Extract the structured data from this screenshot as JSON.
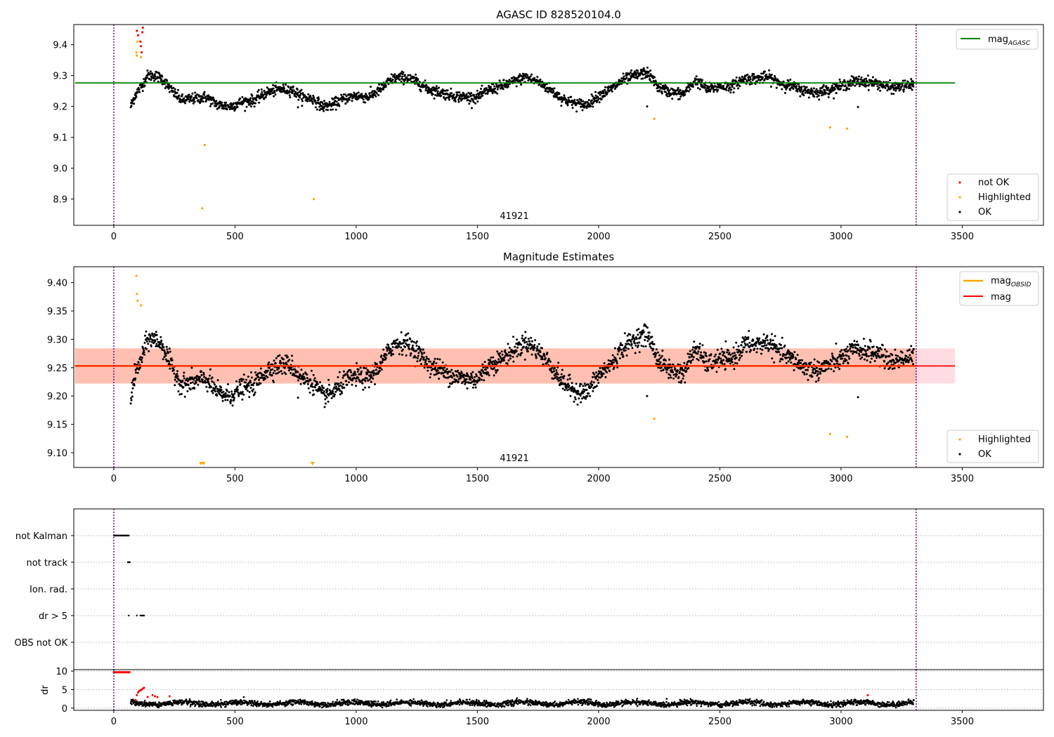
{
  "colors": {
    "ok": "#000000",
    "not_ok": "#ff0000",
    "highlighted": "#ffa500",
    "agasc_line": "#008000",
    "obsid_line": "#ffa500",
    "mag_line": "#ff0000",
    "band_fill": "#ff8c5a",
    "band_outer": "#ffc0cb",
    "vline": "#800080",
    "grid": "#b0b0b0"
  },
  "chart_data": [
    {
      "id": "agasc",
      "type": "scatter",
      "title": "AGASC ID 828520104.0",
      "xlabel": "",
      "ylabel": "",
      "xlim": [
        -165,
        3835
      ],
      "ylim": [
        8.815,
        9.465
      ],
      "xticks": [
        0,
        500,
        1000,
        1500,
        2000,
        2500,
        3000,
        3500
      ],
      "yticks": [
        8.9,
        9.0,
        9.1,
        9.2,
        9.3,
        9.4
      ],
      "ytick_labels": [
        "8.9",
        "9.0",
        "9.1",
        "9.2",
        "9.3",
        "9.4"
      ],
      "obs_bounds": [
        0,
        3310
      ],
      "obsid_label": {
        "text": "41921",
        "x": 1650
      },
      "hline": {
        "name": "mag_AGASC",
        "value": 9.276,
        "xrange": [
          -160,
          3470
        ]
      },
      "legend_lines": [
        {
          "label": "mag",
          "sub": "AGASC",
          "color": "#008000"
        }
      ],
      "legend_points": [
        {
          "label": "not OK",
          "color": "#ff0000"
        },
        {
          "label": "Highlighted",
          "color": "#ffa500"
        },
        {
          "label": "OK",
          "color": "#000000"
        }
      ],
      "series": [
        {
          "name": "not OK",
          "color": "#ff0000",
          "x": [
            95,
            100,
            110,
            112,
            115,
            118,
            120
          ],
          "y": [
            9.445,
            9.43,
            9.41,
            9.395,
            9.375,
            9.44,
            9.455
          ]
        },
        {
          "name": "Highlighted",
          "color": "#ffa500",
          "x": [
            93,
            95,
            98,
            112,
            365,
            375,
            825,
            2230,
            2955,
            3025
          ],
          "y": [
            9.375,
            9.365,
            9.41,
            9.36,
            8.87,
            9.075,
            8.9,
            9.16,
            9.132,
            9.128
          ]
        },
        {
          "name": "OK",
          "color": "#000000",
          "profile_x": [
            70,
            90,
            110,
            140,
            170,
            200,
            240,
            280,
            330,
            380,
            430,
            480,
            530,
            580,
            630,
            680,
            730,
            780,
            820,
            860,
            900,
            950,
            1000,
            1050,
            1100,
            1150,
            1200,
            1250,
            1300,
            1350,
            1400,
            1450,
            1500,
            1550,
            1600,
            1650,
            1700,
            1750,
            1800,
            1850,
            1900,
            1950,
            2000,
            2050,
            2100,
            2150,
            2200,
            2250,
            2300,
            2350,
            2400,
            2450,
            2500,
            2550,
            2600,
            2650,
            2700,
            2750,
            2800,
            2850,
            2900,
            2950,
            3000,
            3050,
            3100,
            3150,
            3200,
            3250,
            3300
          ],
          "profile_y": [
            9.2,
            9.24,
            9.26,
            9.3,
            9.3,
            9.29,
            9.25,
            9.22,
            9.225,
            9.23,
            9.205,
            9.2,
            9.215,
            9.22,
            9.245,
            9.255,
            9.255,
            9.23,
            9.225,
            9.2,
            9.205,
            9.225,
            9.235,
            9.23,
            9.255,
            9.29,
            9.295,
            9.28,
            9.255,
            9.245,
            9.235,
            9.23,
            9.23,
            9.255,
            9.265,
            9.28,
            9.295,
            9.28,
            9.255,
            9.225,
            9.21,
            9.205,
            9.235,
            9.255,
            9.285,
            9.3,
            9.31,
            9.26,
            9.245,
            9.24,
            9.285,
            9.255,
            9.265,
            9.265,
            9.29,
            9.29,
            9.295,
            9.275,
            9.265,
            9.25,
            9.245,
            9.255,
            9.265,
            9.28,
            9.28,
            9.275,
            9.26,
            9.265,
            9.27
          ],
          "noise": 0.016,
          "points": 2400,
          "outliers_x": [
            760,
            2200,
            3070
          ],
          "outliers_y": [
            9.197,
            9.2,
            9.198
          ]
        }
      ]
    },
    {
      "id": "estimates",
      "type": "scatter",
      "title": "Magnitude Estimates",
      "xlabel": "",
      "ylabel": "",
      "xlim": [
        -165,
        3835
      ],
      "ylim": [
        9.074,
        9.428
      ],
      "xticks": [
        0,
        500,
        1000,
        1500,
        2000,
        2500,
        3000,
        3500
      ],
      "yticks": [
        9.1,
        9.15,
        9.2,
        9.25,
        9.3,
        9.35,
        9.4
      ],
      "ytick_labels": [
        "9.10",
        "9.15",
        "9.20",
        "9.25",
        "9.30",
        "9.35",
        "9.40"
      ],
      "obs_bounds": [
        0,
        3310
      ],
      "obsid_label": {
        "text": "41921",
        "x": 1650
      },
      "mag": {
        "value": 9.253,
        "xrange": [
          -160,
          3470
        ]
      },
      "mag_obsid": {
        "value": 9.253,
        "xrange": [
          -160,
          3310
        ]
      },
      "band": {
        "low": 9.222,
        "high": 9.284,
        "xrange": [
          -160,
          3470
        ],
        "inner_xrange": [
          -160,
          3310
        ]
      },
      "legend_lines": [
        {
          "label": "mag",
          "sub": "OBSID",
          "color": "#ffa500"
        },
        {
          "label": "mag",
          "sub": "",
          "color": "#ff0000"
        }
      ],
      "legend_points": [
        {
          "label": "Highlighted",
          "color": "#ffa500"
        },
        {
          "label": "OK",
          "color": "#000000"
        }
      ],
      "below_markers_x": [
        360,
        370,
        820
      ],
      "series": [
        {
          "name": "Highlighted",
          "color": "#ffa500",
          "x": [
            93,
            95,
            98,
            112,
            2230,
            2955,
            3025
          ],
          "y": [
            9.412,
            9.38,
            9.368,
            9.36,
            9.16,
            9.133,
            9.128
          ]
        },
        {
          "name": "OK",
          "color": "#000000",
          "profile_x": [
            70,
            90,
            110,
            140,
            170,
            200,
            240,
            280,
            330,
            380,
            430,
            480,
            530,
            580,
            630,
            680,
            730,
            780,
            820,
            860,
            900,
            950,
            1000,
            1050,
            1100,
            1150,
            1200,
            1250,
            1300,
            1350,
            1400,
            1450,
            1500,
            1550,
            1600,
            1650,
            1700,
            1750,
            1800,
            1850,
            1900,
            1950,
            2000,
            2050,
            2100,
            2150,
            2200,
            2250,
            2300,
            2350,
            2400,
            2450,
            2500,
            2550,
            2600,
            2650,
            2700,
            2750,
            2800,
            2850,
            2900,
            2950,
            3000,
            3050,
            3100,
            3150,
            3200,
            3250,
            3300
          ],
          "profile_y": [
            9.2,
            9.24,
            9.26,
            9.3,
            9.3,
            9.29,
            9.25,
            9.22,
            9.225,
            9.23,
            9.205,
            9.2,
            9.215,
            9.22,
            9.245,
            9.255,
            9.255,
            9.23,
            9.225,
            9.2,
            9.205,
            9.225,
            9.235,
            9.23,
            9.255,
            9.29,
            9.295,
            9.28,
            9.255,
            9.245,
            9.235,
            9.23,
            9.23,
            9.255,
            9.265,
            9.28,
            9.295,
            9.28,
            9.255,
            9.225,
            9.21,
            9.205,
            9.235,
            9.255,
            9.285,
            9.3,
            9.31,
            9.26,
            9.245,
            9.24,
            9.285,
            9.255,
            9.265,
            9.265,
            9.29,
            9.29,
            9.295,
            9.275,
            9.265,
            9.25,
            9.245,
            9.255,
            9.265,
            9.28,
            9.28,
            9.275,
            9.26,
            9.265,
            9.27
          ],
          "noise": 0.016,
          "points": 2400,
          "outliers_x": [
            760,
            2200,
            3070
          ],
          "outliers_y": [
            9.197,
            9.2,
            9.198
          ]
        }
      ]
    },
    {
      "id": "flags",
      "type": "scatter",
      "title": "",
      "xlim": [
        -165,
        3835
      ],
      "categories": [
        "not Kalman",
        "not track",
        "Ion. rad.",
        "dr > 5",
        "OBS not OK"
      ],
      "obs_bounds": [
        0,
        3310
      ],
      "flag_points": [
        {
          "category": "not Kalman",
          "x_from": 0,
          "x_to": 62,
          "count": 28
        },
        {
          "category": "not track",
          "x_from": 58,
          "x_to": 66,
          "count": 4
        },
        {
          "category": "Ion. rad.",
          "x_from": 0,
          "x_to": 0,
          "count": 0
        },
        {
          "category": "dr > 5",
          "x_list": [
            62,
            95,
            110,
            115,
            118,
            122,
            125
          ]
        },
        {
          "category": "OBS not OK",
          "x_from": 0,
          "x_to": 0,
          "count": 0
        }
      ]
    },
    {
      "id": "dr",
      "type": "scatter",
      "title": "",
      "xlabel": "",
      "ylabel": "dr",
      "xlim": [
        -165,
        3835
      ],
      "ylim": [
        -0.6,
        10.4
      ],
      "xticks": [
        0,
        500,
        1000,
        1500,
        2000,
        2500,
        3000,
        3500
      ],
      "yticks": [
        0,
        5,
        10
      ],
      "ytick_labels": [
        "0",
        "5",
        "10"
      ],
      "obs_bounds": [
        0,
        3310
      ],
      "not_ok_x": [
        0,
        65
      ],
      "not_ok_value": 9.7,
      "not_ok_ramp": {
        "x": [
          90,
          95,
          100,
          105,
          110,
          115,
          120,
          125,
          140,
          160,
          170,
          180,
          230,
          3110
        ],
        "y": [
          2.2,
          3.5,
          4.2,
          4.6,
          4.8,
          5.0,
          5.3,
          5.5,
          3.0,
          3.5,
          3.2,
          3.0,
          3.2,
          3.5
        ]
      },
      "ok_level": 1.3,
      "ok_noise": 0.8,
      "ok_points": 2600
    }
  ],
  "legend_labels": {
    "mag": "mag",
    "agasc_sub": "AGASC",
    "obsid_sub": "OBSID"
  }
}
